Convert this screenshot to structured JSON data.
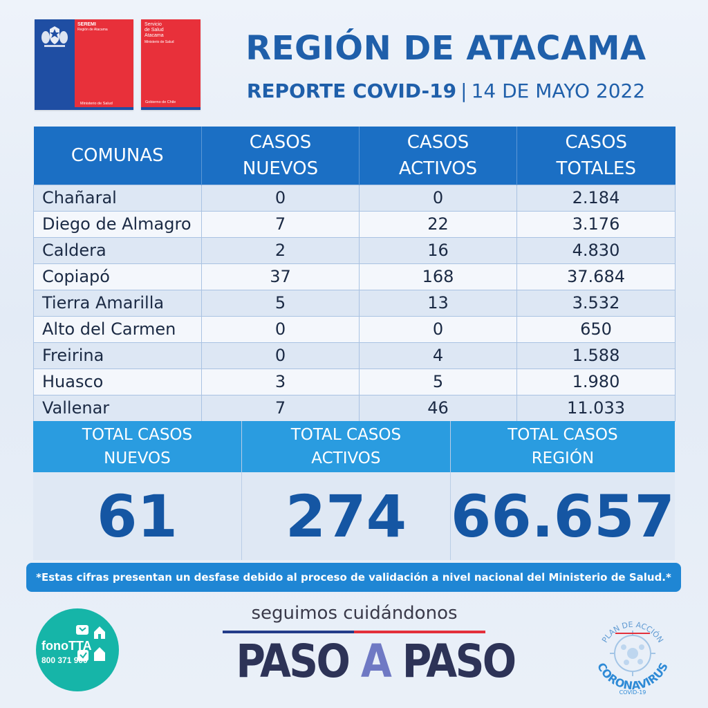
{
  "logos": {
    "seremi": {
      "title": "SEREMI",
      "region": "Región de Atacama",
      "ministry": "Ministerio de Salud"
    },
    "salud": {
      "line1": "Servicio",
      "line2": "de Salud",
      "line3": "Atacama",
      "ministry": "Ministerio de Salud",
      "gov": "Gobierno de Chile"
    }
  },
  "header": {
    "title": "REGIÓN DE ATACAMA",
    "report": "REPORTE COVID-19",
    "separator": "|",
    "date": "14 DE MAYO 2022"
  },
  "table": {
    "headers": [
      "COMUNAS",
      "CASOS NUEVOS",
      "CASOS ACTIVOS",
      "CASOS TOTALES"
    ],
    "header_lines": [
      [
        "COMUNAS"
      ],
      [
        "CASOS",
        "NUEVOS"
      ],
      [
        "CASOS",
        "ACTIVOS"
      ],
      [
        "CASOS",
        "TOTALES"
      ]
    ],
    "rows": [
      {
        "comuna": "Chañaral",
        "nuevos": "0",
        "activos": "0",
        "totales": "2.184"
      },
      {
        "comuna": "Diego de Almagro",
        "nuevos": "7",
        "activos": "22",
        "totales": "3.176"
      },
      {
        "comuna": "Caldera",
        "nuevos": "2",
        "activos": "16",
        "totales": "4.830"
      },
      {
        "comuna": "Copiapó",
        "nuevos": "37",
        "activos": "168",
        "totales": "37.684"
      },
      {
        "comuna": "Tierra Amarilla",
        "nuevos": "5",
        "activos": "13",
        "totales": "3.532"
      },
      {
        "comuna": "Alto del Carmen",
        "nuevos": "0",
        "activos": "0",
        "totales": "650"
      },
      {
        "comuna": "Freirina",
        "nuevos": "0",
        "activos": "4",
        "totales": "1.588"
      },
      {
        "comuna": "Huasco",
        "nuevos": "3",
        "activos": "5",
        "totales": "1.980"
      },
      {
        "comuna": "Vallenar",
        "nuevos": "7",
        "activos": "46",
        "totales": "11.033"
      }
    ]
  },
  "totals": [
    {
      "line1": "TOTAL CASOS",
      "line2": "NUEVOS",
      "value": "61"
    },
    {
      "line1": "TOTAL CASOS",
      "line2": "ACTIVOS",
      "value": "274"
    },
    {
      "line1": "TOTAL CASOS",
      "line2": "REGIÓN",
      "value": "66.657"
    }
  ],
  "note": "*Estas cifras presentan un desfase debido al proceso de validación a nivel nacional del Ministerio de Salud.*",
  "footer": {
    "fono_name": "fonoTTA",
    "fono_number": "800 371 900",
    "tagline": "seguimos cuidándonos",
    "paso1": "PASO ",
    "paso2": "A",
    "paso3": " PASO",
    "plan_top": "PLAN DE ACCIÓN",
    "plan_main": "CORONAVIRUS",
    "plan_sub": "COVID-19"
  },
  "colors": {
    "title_blue": "#1f5faa",
    "header_blue": "#1b6fc4",
    "totals_head": "#2a9ce0",
    "totals_value": "#1556a3",
    "note_bg": "#1f86d4",
    "gov_red": "#e8303a",
    "gov_blue": "#1f4ea3",
    "fono_teal": "#16b5a8"
  }
}
